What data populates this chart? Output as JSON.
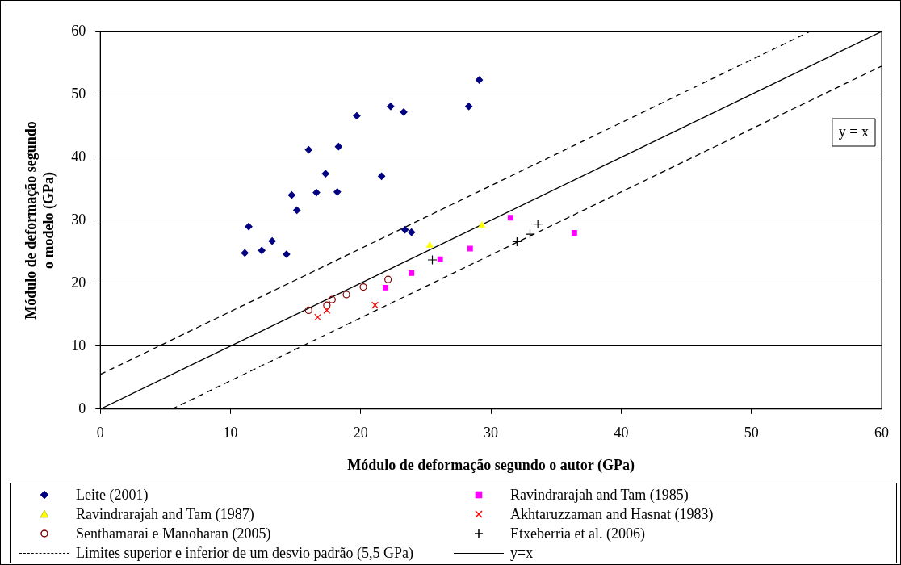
{
  "chart_data": {
    "type": "scatter",
    "xlabel": "Módulo de deformação segundo o autor (GPa)",
    "ylabel": "Módulo de deformação segundo\no modelo (GPa)",
    "xlim": [
      0,
      60
    ],
    "xticks": [
      0,
      10,
      20,
      30,
      40,
      50,
      60
    ],
    "ylim": [
      0,
      60
    ],
    "yticks": [
      0,
      10,
      20,
      30,
      40,
      50,
      60
    ],
    "grid": "y",
    "legend": "bottom",
    "annotations": [
      "y = x"
    ],
    "series": [
      {
        "name": "Leite (2001)",
        "color": "#000080",
        "marker": "diamond",
        "x": [
          11.1,
          11.4,
          12.4,
          13.2,
          14.3,
          14.7,
          15.1,
          16.0,
          16.6,
          17.3,
          18.2,
          18.3,
          19.7,
          21.6,
          22.3,
          23.3,
          23.4,
          23.9,
          28.3,
          29.1
        ],
        "values": [
          24.8,
          29.0,
          25.2,
          26.7,
          24.6,
          34.0,
          31.6,
          41.2,
          34.4,
          37.4,
          34.5,
          41.7,
          46.6,
          37.0,
          48.1,
          47.2,
          28.5,
          28.1,
          48.1,
          52.3
        ]
      },
      {
        "name": "Ravindrarajah and Tam (1985)",
        "color": "#ff00ff",
        "marker": "square",
        "x": [
          21.9,
          23.9,
          26.1,
          28.4,
          31.5,
          36.4
        ],
        "values": [
          19.3,
          21.6,
          23.8,
          25.5,
          30.4,
          28.0
        ]
      },
      {
        "name": "Ravindrarajah and Tam (1987)",
        "color": "#ffff00",
        "marker": "triangle",
        "x": [
          25.3,
          29.3
        ],
        "values": [
          26.0,
          29.2
        ]
      },
      {
        "name": "Akhtaruzzaman and Hasnat (1983)",
        "color": "#ff0000",
        "marker": "cross",
        "x": [
          16.7,
          17.4,
          21.1
        ],
        "values": [
          14.6,
          15.7,
          16.5
        ]
      },
      {
        "name": "Senthamarai e Manoharan (2005)",
        "color": "#800000",
        "marker": "circle",
        "x": [
          16.0,
          17.4,
          17.8,
          18.9,
          20.2,
          22.1
        ],
        "values": [
          15.7,
          16.5,
          17.4,
          18.2,
          19.4,
          20.6
        ]
      },
      {
        "name": "Etxeberria et al. (2006)",
        "color": "#000000",
        "marker": "plus",
        "x": [
          25.5,
          32.0,
          33.0,
          33.6
        ],
        "values": [
          23.7,
          26.6,
          27.8,
          29.4
        ]
      },
      {
        "name": "Limites superior e inferior de um desvio padrão (5,5 GPa)",
        "type": "line",
        "color": "#000000",
        "line_style": "dashed",
        "marker": "none",
        "x": [
          0,
          54.5
        ],
        "values": [
          5.5,
          60
        ]
      },
      {
        "name": "y=x",
        "type": "line",
        "color": "#000000",
        "line_style": "solid",
        "marker": "none",
        "x": [
          0,
          60
        ],
        "values": [
          0,
          60
        ]
      },
      {
        "type": "line",
        "color": "#000000",
        "line_style": "dashed",
        "marker": "none",
        "x": [
          5.5,
          60
        ],
        "values": [
          0,
          54.5
        ]
      }
    ]
  }
}
